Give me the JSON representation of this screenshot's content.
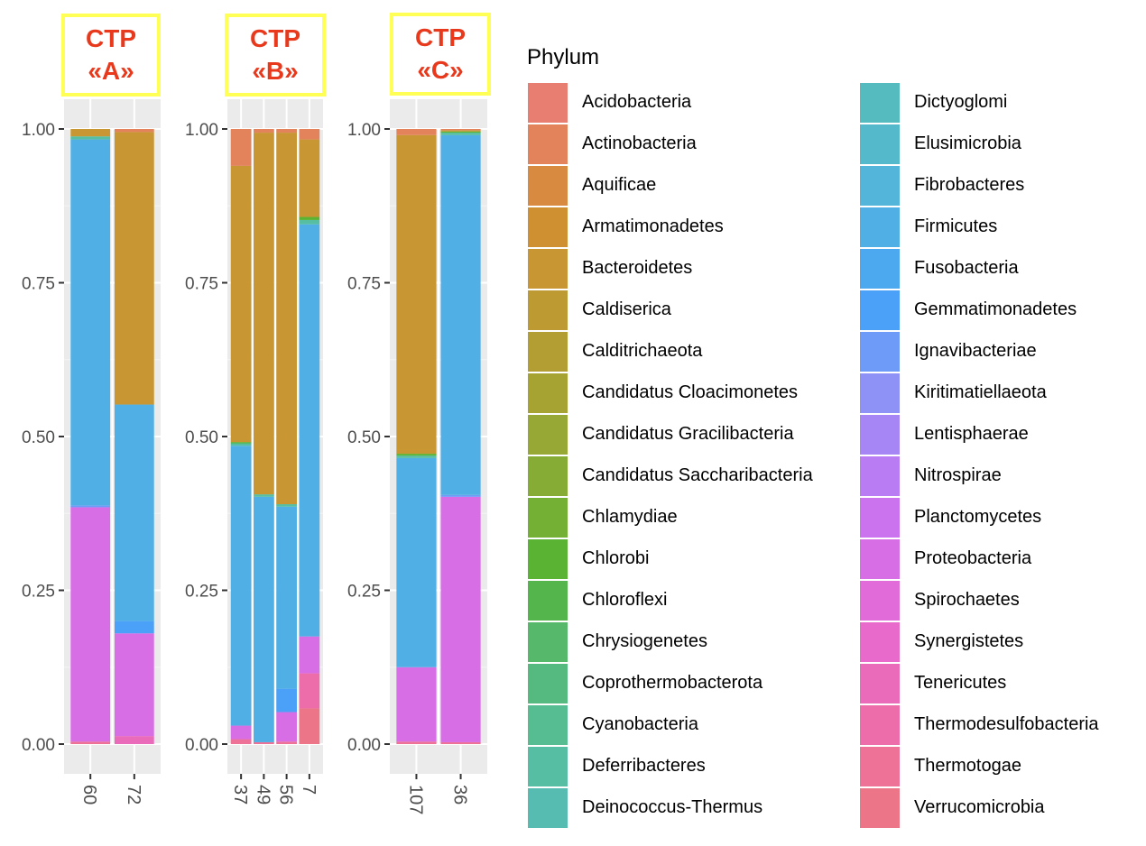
{
  "chart_data": {
    "type": "bar",
    "subtype": "stacked-relative-abundance-faceted",
    "ylim": [
      0,
      1
    ],
    "y_ticks": [
      "0.00",
      "0.25",
      "0.50",
      "0.75",
      "1.00"
    ],
    "grid": true,
    "legend": {
      "title": "Phylum",
      "placement": "right"
    },
    "phyla": [
      {
        "name": "Acidobacteria",
        "color": "#E87D72"
      },
      {
        "name": "Actinobacteria",
        "color": "#E2835B"
      },
      {
        "name": "Aquificae",
        "color": "#D88A41"
      },
      {
        "name": "Armatimonadetes",
        "color": "#CF9032"
      },
      {
        "name": "Bacteroidetes",
        "color": "#C89632"
      },
      {
        "name": "Caldiserica",
        "color": "#BE9A33"
      },
      {
        "name": "Calditrichaeota",
        "color": "#B39E33"
      },
      {
        "name": "Candidatus Cloacimonetes",
        "color": "#A7A333"
      },
      {
        "name": "Candidatus Gracilibacteria",
        "color": "#97A835"
      },
      {
        "name": "Candidatus Saccharibacteria",
        "color": "#86AC35"
      },
      {
        "name": "Chlamydiae",
        "color": "#74B033"
      },
      {
        "name": "Chlorobi",
        "color": "#5BB333"
      },
      {
        "name": "Chloroflexi",
        "color": "#53B54B"
      },
      {
        "name": "Chrysiogenetes",
        "color": "#55B86A"
      },
      {
        "name": "Coprothermobacterota",
        "color": "#55BA80"
      },
      {
        "name": "Cyanobacteria",
        "color": "#56BC92"
      },
      {
        "name": "Deferribacteres",
        "color": "#56BEA3"
      },
      {
        "name": "Deinococcus-Thermus",
        "color": "#56BCB2"
      },
      {
        "name": "Dictyoglomi",
        "color": "#56BBBF"
      },
      {
        "name": "Elusimicrobia",
        "color": "#55B9CC"
      },
      {
        "name": "Fibrobacteres",
        "color": "#53B5DA"
      },
      {
        "name": "Firmicutes",
        "color": "#50B0E6"
      },
      {
        "name": "Fusobacteria",
        "color": "#4CA9F0"
      },
      {
        "name": "Gemmatimonadetes",
        "color": "#4BA1F8"
      },
      {
        "name": "Ignavibacteriae",
        "color": "#6E9AF8"
      },
      {
        "name": "Kiritimatiellaeota",
        "color": "#8E91F6"
      },
      {
        "name": "Lentisphaerae",
        "color": "#A686F5"
      },
      {
        "name": "Nitrospirae",
        "color": "#BA7CF3"
      },
      {
        "name": "Planctomycetes",
        "color": "#CB72EF"
      },
      {
        "name": "Proteobacteria",
        "color": "#D86EE6"
      },
      {
        "name": "Spirochaetes",
        "color": "#E16BD9"
      },
      {
        "name": "Synergistetes",
        "color": "#E86BCB"
      },
      {
        "name": "Tenericutes",
        "color": "#EB6BBB"
      },
      {
        "name": "Thermodesulfobacteria",
        "color": "#ED6DAA"
      },
      {
        "name": "Thermotogae",
        "color": "#EE7197"
      },
      {
        "name": "Verrucomicrobia",
        "color": "#EC7587"
      }
    ],
    "facets": [
      {
        "strip": [
          "CTP",
          "«A»"
        ],
        "samples": [
          {
            "label": "60",
            "segments": [
              {
                "phylum": "Thermotogae",
                "value": 0.004
              },
              {
                "phylum": "Proteobacteria",
                "value": 0.381
              },
              {
                "phylum": "Ignavibacteriae",
                "value": 0.003
              },
              {
                "phylum": "Firmicutes",
                "value": 0.595
              },
              {
                "phylum": "Deferribacteres",
                "value": 0.005
              },
              {
                "phylum": "Bacteroidetes",
                "value": 0.012
              }
            ]
          },
          {
            "label": "72",
            "segments": [
              {
                "phylum": "Tenericutes",
                "value": 0.013
              },
              {
                "phylum": "Proteobacteria",
                "value": 0.167
              },
              {
                "phylum": "Gemmatimonadetes",
                "value": 0.02
              },
              {
                "phylum": "Firmicutes",
                "value": 0.352
              },
              {
                "phylum": "Bacteroidetes",
                "value": 0.443
              },
              {
                "phylum": "Actinobacteria",
                "value": 0.005
              }
            ]
          }
        ]
      },
      {
        "strip": [
          "CTP",
          "«B»"
        ],
        "samples": [
          {
            "label": "37",
            "segments": [
              {
                "phylum": "Thermotogae",
                "value": 0.008
              },
              {
                "phylum": "Proteobacteria",
                "value": 0.022
              },
              {
                "phylum": "Firmicutes",
                "value": 0.455
              },
              {
                "phylum": "Deferribacteres",
                "value": 0.004
              },
              {
                "phylum": "Chlorobi",
                "value": 0.002
              },
              {
                "phylum": "Bacteroidetes",
                "value": 0.449
              },
              {
                "phylum": "Actinobacteria",
                "value": 0.06
              }
            ]
          },
          {
            "label": "49",
            "segments": [
              {
                "phylum": "Thermotogae",
                "value": 0.003
              },
              {
                "phylum": "Firmicutes",
                "value": 0.399
              },
              {
                "phylum": "Deferribacteres",
                "value": 0.004
              },
              {
                "phylum": "Bacteroidetes",
                "value": 0.588
              },
              {
                "phylum": "Actinobacteria",
                "value": 0.006
              }
            ]
          },
          {
            "label": "56",
            "segments": [
              {
                "phylum": "Thermotogae",
                "value": 0.004
              },
              {
                "phylum": "Proteobacteria",
                "value": 0.048
              },
              {
                "phylum": "Gemmatimonadetes",
                "value": 0.038
              },
              {
                "phylum": "Firmicutes",
                "value": 0.296
              },
              {
                "phylum": "Deferribacteres",
                "value": 0.004
              },
              {
                "phylum": "Bacteroidetes",
                "value": 0.604
              },
              {
                "phylum": "Actinobacteria",
                "value": 0.006
              }
            ]
          },
          {
            "label": "7",
            "segments": [
              {
                "phylum": "Verrucomicrobia",
                "value": 0.058
              },
              {
                "phylum": "Thermodesulfobacteria",
                "value": 0.057
              },
              {
                "phylum": "Proteobacteria",
                "value": 0.06
              },
              {
                "phylum": "Firmicutes",
                "value": 0.67
              },
              {
                "phylum": "Deferribacteres",
                "value": 0.007
              },
              {
                "phylum": "Chlorobi",
                "value": 0.005
              },
              {
                "phylum": "Bacteroidetes",
                "value": 0.126
              },
              {
                "phylum": "Actinobacteria",
                "value": 0.017
              }
            ]
          }
        ]
      },
      {
        "strip": [
          "CTP",
          "«C»"
        ],
        "samples": [
          {
            "label": "107",
            "segments": [
              {
                "phylum": "Thermotogae",
                "value": 0.004
              },
              {
                "phylum": "Proteobacteria",
                "value": 0.121
              },
              {
                "phylum": "Firmicutes",
                "value": 0.34
              },
              {
                "phylum": "Deferribacteres",
                "value": 0.004
              },
              {
                "phylum": "Chlorobi",
                "value": 0.003
              },
              {
                "phylum": "Bacteroidetes",
                "value": 0.518
              },
              {
                "phylum": "Actinobacteria",
                "value": 0.01
              }
            ]
          },
          {
            "label": "36",
            "segments": [
              {
                "phylum": "Thermotogae",
                "value": 0.003
              },
              {
                "phylum": "Proteobacteria",
                "value": 0.399
              },
              {
                "phylum": "Ignavibacteriae",
                "value": 0.003
              },
              {
                "phylum": "Firmicutes",
                "value": 0.585
              },
              {
                "phylum": "Deferribacteres",
                "value": 0.004
              },
              {
                "phylum": "Chlorobi",
                "value": 0.002
              },
              {
                "phylum": "Bacteroidetes",
                "value": 0.002
              },
              {
                "phylum": "Actinobacteria",
                "value": 0.002
              }
            ]
          }
        ]
      }
    ]
  }
}
